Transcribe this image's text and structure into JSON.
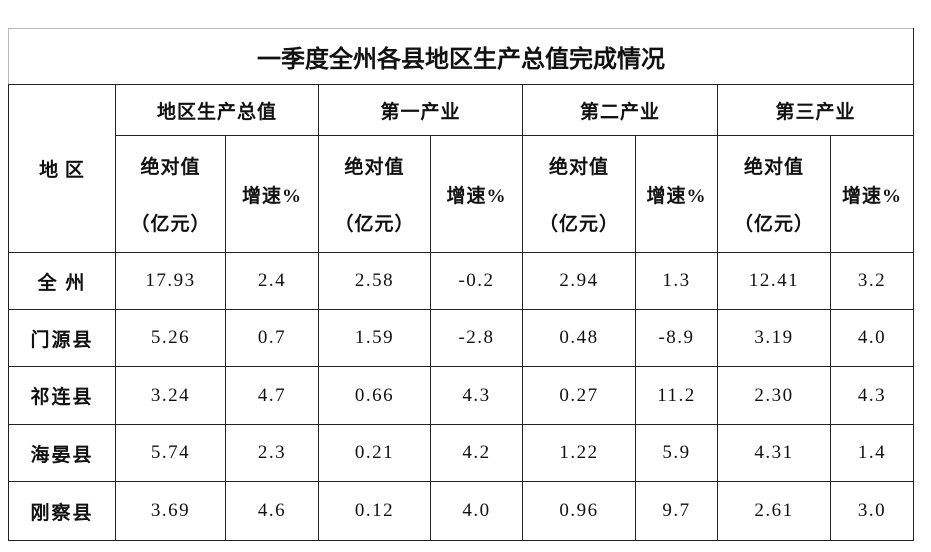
{
  "title": "一季度全州各县地区生产总值完成情况",
  "header": {
    "region": "地 区",
    "groups": [
      {
        "name": "地区生产总值",
        "abs_label": "绝对值",
        "abs_unit": "（亿元）",
        "rate_label": "增速%"
      },
      {
        "name": "第一产业",
        "abs_label": "绝对值",
        "abs_unit": "（亿元）",
        "rate_label": "增速%"
      },
      {
        "name": "第二产业",
        "abs_label": "绝对值",
        "abs_unit": "（亿元）",
        "rate_label": "增速%"
      },
      {
        "name": "第三产业",
        "abs_label": "绝对值",
        "abs_unit": "（亿元）",
        "rate_label": "增速%"
      }
    ]
  },
  "rows": [
    [
      "全 州",
      "17.93",
      "2.4",
      "2.58",
      "-0.2",
      "2.94",
      "1.3",
      "12.41",
      "3.2"
    ],
    [
      "门源县",
      "5.26",
      "0.7",
      "1.59",
      "-2.8",
      "0.48",
      "-8.9",
      "3.19",
      "4.0"
    ],
    [
      "祁连县",
      "3.24",
      "4.7",
      "0.66",
      "4.3",
      "0.27",
      "11.2",
      "2.30",
      "4.3"
    ],
    [
      "海晏县",
      "5.74",
      "2.3",
      "0.21",
      "4.2",
      "1.22",
      "5.9",
      "4.31",
      "1.4"
    ],
    [
      "刚察县",
      "3.69",
      "4.6",
      "0.12",
      "4.0",
      "0.96",
      "9.7",
      "2.61",
      "3.0"
    ]
  ]
}
